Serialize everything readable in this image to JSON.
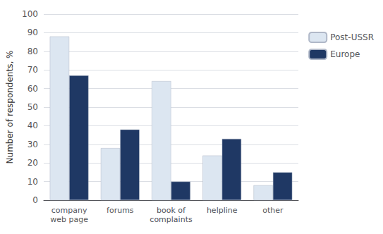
{
  "chart_data": {
    "type": "bar",
    "categories": [
      "company\nweb page",
      "forums",
      "book of\ncomplaints",
      "helpline",
      "other"
    ],
    "series": [
      {
        "name": "Post-USSR",
        "color": "#dce6f1",
        "values": [
          88,
          28,
          64,
          24,
          8
        ]
      },
      {
        "name": "Europe",
        "color": "#1f3864",
        "values": [
          67,
          38,
          10,
          33,
          15
        ]
      }
    ],
    "ylabel": "Number of respondents, %",
    "ylim": [
      0,
      100
    ],
    "yticks": [
      0,
      10,
      20,
      30,
      40,
      50,
      60,
      70,
      80,
      90,
      100
    ],
    "grid": true,
    "legend": "right"
  }
}
